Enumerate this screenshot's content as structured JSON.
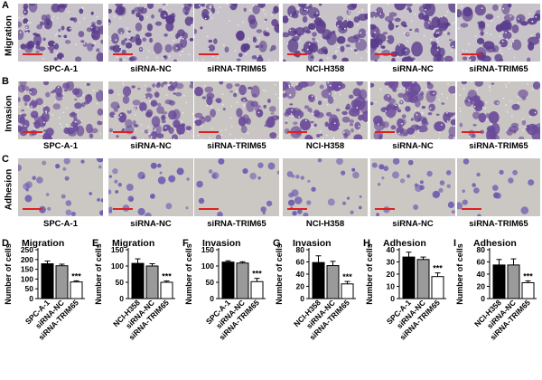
{
  "panels": {
    "A": "A",
    "B": "B",
    "C": "C",
    "D": "D",
    "E": "E",
    "F": "F",
    "G": "G",
    "H": "H",
    "I": "I"
  },
  "rows": [
    {
      "label": "Migration",
      "stain": "#5a3c8c",
      "bg": "#c8c3c8",
      "captions": [
        "SPC-A-1",
        "siRNA-NC",
        "siRNA-TRIM65",
        "NCI-H358",
        "siRNA-NC",
        "siRNA-TRIM65"
      ]
    },
    {
      "label": "Invasion",
      "stain": "#6a4a9a",
      "bg": "#c9c5c2",
      "captions": [
        "SPC-A-1",
        "siRNA-NC",
        "siRNA-TRIM65",
        "NCI-H358",
        "siRNA-NC",
        "siRNA-TRIM65"
      ]
    },
    {
      "label": "Adhesion",
      "stain": "#6a58b0",
      "bg": "#cbc8c4",
      "captions": [
        "SPC-A-1",
        "siRNA-NC",
        "siRNA-TRIM65",
        "NCI-H358",
        "siRNA-NC",
        "siRNA-TRIM65"
      ]
    }
  ],
  "colors": {
    "control": "#000000",
    "nc": "#9a9a9a",
    "trim": "#ffffff",
    "scalebar": "#e02020"
  },
  "chart_data": [
    {
      "type": "bar",
      "panel": "D",
      "title": "Migration",
      "ylabel": "Number of cells",
      "ylim": [
        0,
        250
      ],
      "yticks": [
        0,
        50,
        100,
        150,
        200,
        250
      ],
      "categories": [
        "SPC-A-1",
        "siRNA-NC",
        "siRNA-TRIM65"
      ],
      "values": [
        178,
        168,
        85
      ],
      "errors": [
        14,
        8,
        6
      ],
      "significance": [
        "",
        "",
        "***"
      ]
    },
    {
      "type": "bar",
      "panel": "E",
      "title": "Migration",
      "ylabel": "Number of cells",
      "ylim": [
        0,
        150
      ],
      "yticks": [
        0,
        50,
        100,
        150
      ],
      "categories": [
        "NCI-H358",
        "siRNA-NC",
        "siRNA-TRIM65"
      ],
      "values": [
        108,
        100,
        50
      ],
      "errors": [
        14,
        7,
        4
      ],
      "significance": [
        "",
        "",
        "***"
      ]
    },
    {
      "type": "bar",
      "panel": "F",
      "title": "Invasion",
      "ylabel": "Number of cells",
      "ylim": [
        0,
        150
      ],
      "yticks": [
        0,
        50,
        100,
        150
      ],
      "categories": [
        "SPC-A-1",
        "siRNA-NC",
        "siRNA-TRIM65"
      ],
      "values": [
        112,
        109,
        52
      ],
      "errors": [
        4,
        4,
        10
      ],
      "significance": [
        "",
        "",
        "***"
      ]
    },
    {
      "type": "bar",
      "panel": "G",
      "title": "Invasion",
      "ylabel": "Number of cells",
      "ylim": [
        0,
        80
      ],
      "yticks": [
        0,
        20,
        40,
        60,
        80
      ],
      "categories": [
        "NCI-H358",
        "siRNA-NC",
        "siRNA-TRIM65"
      ],
      "values": [
        59,
        54,
        24
      ],
      "errors": [
        11,
        7,
        4
      ],
      "significance": [
        "",
        "",
        "***"
      ]
    },
    {
      "type": "bar",
      "panel": "H",
      "title": "Adhesion",
      "ylabel": "Number of cells",
      "ylim": [
        0,
        40
      ],
      "yticks": [
        0,
        10,
        20,
        30,
        40
      ],
      "categories": [
        "SPC-A-1",
        "siRNA-NC",
        "siRNA-TRIM65"
      ],
      "values": [
        34,
        32,
        18
      ],
      "errors": [
        4,
        2,
        3
      ],
      "significance": [
        "",
        "",
        "***"
      ]
    },
    {
      "type": "bar",
      "panel": "I",
      "title": "Adhesion",
      "ylabel": "Number of cells",
      "ylim": [
        0,
        80
      ],
      "yticks": [
        0,
        20,
        40,
        60,
        80
      ],
      "categories": [
        "NCI-H358",
        "siRNA-NC",
        "siRNA-TRIM65"
      ],
      "values": [
        55,
        55,
        26
      ],
      "errors": [
        9,
        10,
        3
      ],
      "significance": [
        "",
        "",
        "***"
      ]
    }
  ]
}
